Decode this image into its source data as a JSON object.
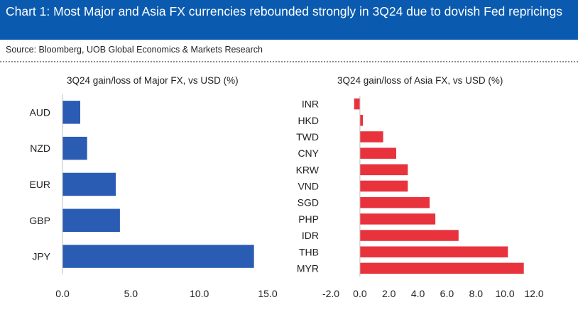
{
  "header": {
    "title": "Chart 1: Most Major and Asia FX currencies rebounded strongly in 3Q24 due to dovish Fed repricings",
    "source": "Source: Bloomberg, UOB Global Economics & Markets Research"
  },
  "colors": {
    "header_bg": "#0a5bb0",
    "major_bar": "#2a5cb3",
    "asia_bar": "#e8333c"
  },
  "chart_data": [
    {
      "type": "bar",
      "orientation": "horizontal",
      "title": "3Q24 gain/loss of Major FX, vs USD (%)",
      "categories": [
        "AUD",
        "NZD",
        "EUR",
        "GBP",
        "JPY"
      ],
      "values": [
        1.3,
        1.8,
        3.9,
        4.2,
        14.0
      ],
      "xlim": [
        0,
        15
      ],
      "xticks": [
        0,
        5,
        10,
        15
      ],
      "xtick_labels": [
        "0.0",
        "5.0",
        "10.0",
        "15.0"
      ],
      "grid": false,
      "color": "#2a5cb3"
    },
    {
      "type": "bar",
      "orientation": "horizontal",
      "title": "3Q24 gain/loss of Asia FX, vs USD (%)",
      "categories": [
        "INR",
        "HKD",
        "TWD",
        "CNY",
        "KRW",
        "VND",
        "SGD",
        "PHP",
        "IDR",
        "THB",
        "MYR"
      ],
      "values": [
        -0.4,
        0.2,
        1.6,
        2.5,
        3.3,
        3.3,
        4.8,
        5.2,
        6.8,
        10.2,
        11.3
      ],
      "xlim": [
        -2,
        12
      ],
      "xticks": [
        -2,
        0,
        2,
        4,
        6,
        8,
        10,
        12
      ],
      "xtick_labels": [
        "-2.0",
        "0.0",
        "2.0",
        "4.0",
        "6.0",
        "8.0",
        "10.0",
        "12.0"
      ],
      "grid": false,
      "color": "#e8333c"
    }
  ]
}
